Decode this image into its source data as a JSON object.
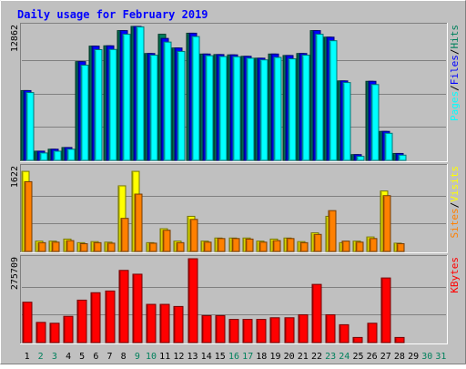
{
  "title": "Daily usage for February 2019",
  "colors": {
    "background": "#c0c0c0",
    "title": "#0000ff",
    "hits": "#00805c",
    "files": "#0000ff",
    "pages": "#00ffff",
    "visits": "#ffff00",
    "sites": "#ff8000",
    "kbytes": "#ff0000",
    "weekday": "#000000",
    "weekend": "#00805c"
  },
  "days": [
    {
      "label": "1",
      "weekend": false
    },
    {
      "label": "2",
      "weekend": true
    },
    {
      "label": "3",
      "weekend": true
    },
    {
      "label": "4",
      "weekend": false
    },
    {
      "label": "5",
      "weekend": false
    },
    {
      "label": "6",
      "weekend": false
    },
    {
      "label": "7",
      "weekend": false
    },
    {
      "label": "8",
      "weekend": false
    },
    {
      "label": "9",
      "weekend": true
    },
    {
      "label": "10",
      "weekend": true
    },
    {
      "label": "11",
      "weekend": false
    },
    {
      "label": "12",
      "weekend": false
    },
    {
      "label": "13",
      "weekend": false
    },
    {
      "label": "14",
      "weekend": false
    },
    {
      "label": "15",
      "weekend": false
    },
    {
      "label": "16",
      "weekend": true
    },
    {
      "label": "17",
      "weekend": true
    },
    {
      "label": "18",
      "weekend": false
    },
    {
      "label": "19",
      "weekend": false
    },
    {
      "label": "20",
      "weekend": false
    },
    {
      "label": "21",
      "weekend": false
    },
    {
      "label": "22",
      "weekend": false
    },
    {
      "label": "23",
      "weekend": true
    },
    {
      "label": "24",
      "weekend": true
    },
    {
      "label": "25",
      "weekend": false
    },
    {
      "label": "26",
      "weekend": false
    },
    {
      "label": "27",
      "weekend": false
    },
    {
      "label": "28",
      "weekend": false
    },
    {
      "label": "29",
      "weekend": false
    },
    {
      "label": "30",
      "weekend": true
    },
    {
      "label": "31",
      "weekend": true
    }
  ],
  "chart_data": [
    {
      "type": "bar",
      "panel": "hits-files-pages",
      "ymax_label": "12862",
      "ymax": 12862,
      "axis_label_parts": [
        {
          "text": "Pages",
          "series": "pages"
        },
        {
          "text": "/",
          "series": "separator"
        },
        {
          "text": "Files",
          "series": "files"
        },
        {
          "text": "/",
          "series": "separator"
        },
        {
          "text": "Hits",
          "series": "hits"
        }
      ],
      "series": [
        {
          "name": "Hits",
          "key": "hits",
          "values": [
            6700,
            880,
            1070,
            1230,
            9480,
            10970,
            11000,
            12460,
            12860,
            10260,
            12110,
            10790,
            12210,
            10210,
            10160,
            10130,
            9990,
            9810,
            10210,
            10070,
            10260,
            12460,
            11830,
            7630,
            550,
            7590,
            2780,
            660,
            0,
            0,
            0
          ]
        },
        {
          "name": "Files",
          "key": "files",
          "values": [
            6700,
            880,
            1070,
            1230,
            9480,
            10970,
            11000,
            12460,
            12860,
            10260,
            11710,
            10790,
            12210,
            10210,
            10160,
            10130,
            9990,
            9810,
            10210,
            10070,
            10260,
            12460,
            11830,
            7630,
            550,
            7590,
            2780,
            660,
            0,
            0,
            0
          ]
        },
        {
          "name": "Pages",
          "key": "pages",
          "values": [
            6510,
            710,
            880,
            1070,
            9140,
            10630,
            10650,
            12110,
            12810,
            10100,
            11360,
            10460,
            11890,
            10050,
            9970,
            9950,
            9810,
            9650,
            9890,
            9750,
            10100,
            12110,
            11490,
            7470,
            380,
            7280,
            2600,
            500,
            0,
            0,
            0
          ]
        }
      ]
    },
    {
      "type": "bar",
      "panel": "visits-sites",
      "ymax_label": "1622",
      "ymax": 1622,
      "axis_label_parts": [
        {
          "text": "Sites",
          "series": "sites"
        },
        {
          "text": "/",
          "series": "separator"
        },
        {
          "text": "Visits",
          "series": "visits"
        }
      ],
      "series": [
        {
          "name": "Visits",
          "key": "visits",
          "values": [
            1550,
            200,
            200,
            240,
            170,
            190,
            180,
            1270,
            1550,
            170,
            440,
            200,
            680,
            200,
            260,
            260,
            260,
            200,
            240,
            260,
            190,
            360,
            680,
            170,
            200,
            280,
            1170,
            160,
            0,
            0,
            0
          ]
        },
        {
          "name": "Sites",
          "key": "sites",
          "values": [
            1350,
            170,
            180,
            210,
            150,
            170,
            160,
            640,
            1110,
            160,
            410,
            170,
            620,
            180,
            250,
            250,
            240,
            180,
            210,
            250,
            170,
            330,
            790,
            200,
            180,
            250,
            1080,
            150,
            0,
            0,
            0
          ]
        }
      ]
    },
    {
      "type": "bar",
      "panel": "kbytes",
      "ymax_label": "275709",
      "ymax": 275709,
      "axis_label_parts": [
        {
          "text": "KBytes",
          "series": "kbytes"
        }
      ],
      "series": [
        {
          "name": "KBytes",
          "key": "kbytes",
          "values": [
            132800,
            66400,
            63600,
            86300,
            139600,
            164000,
            169600,
            237400,
            224900,
            125700,
            125700,
            118700,
            275700,
            88700,
            88700,
            76100,
            76100,
            76100,
            81600,
            81600,
            91500,
            191400,
            91500,
            58700,
            16800,
            63600,
            212500,
            16800,
            0,
            0,
            0
          ]
        }
      ]
    }
  ]
}
